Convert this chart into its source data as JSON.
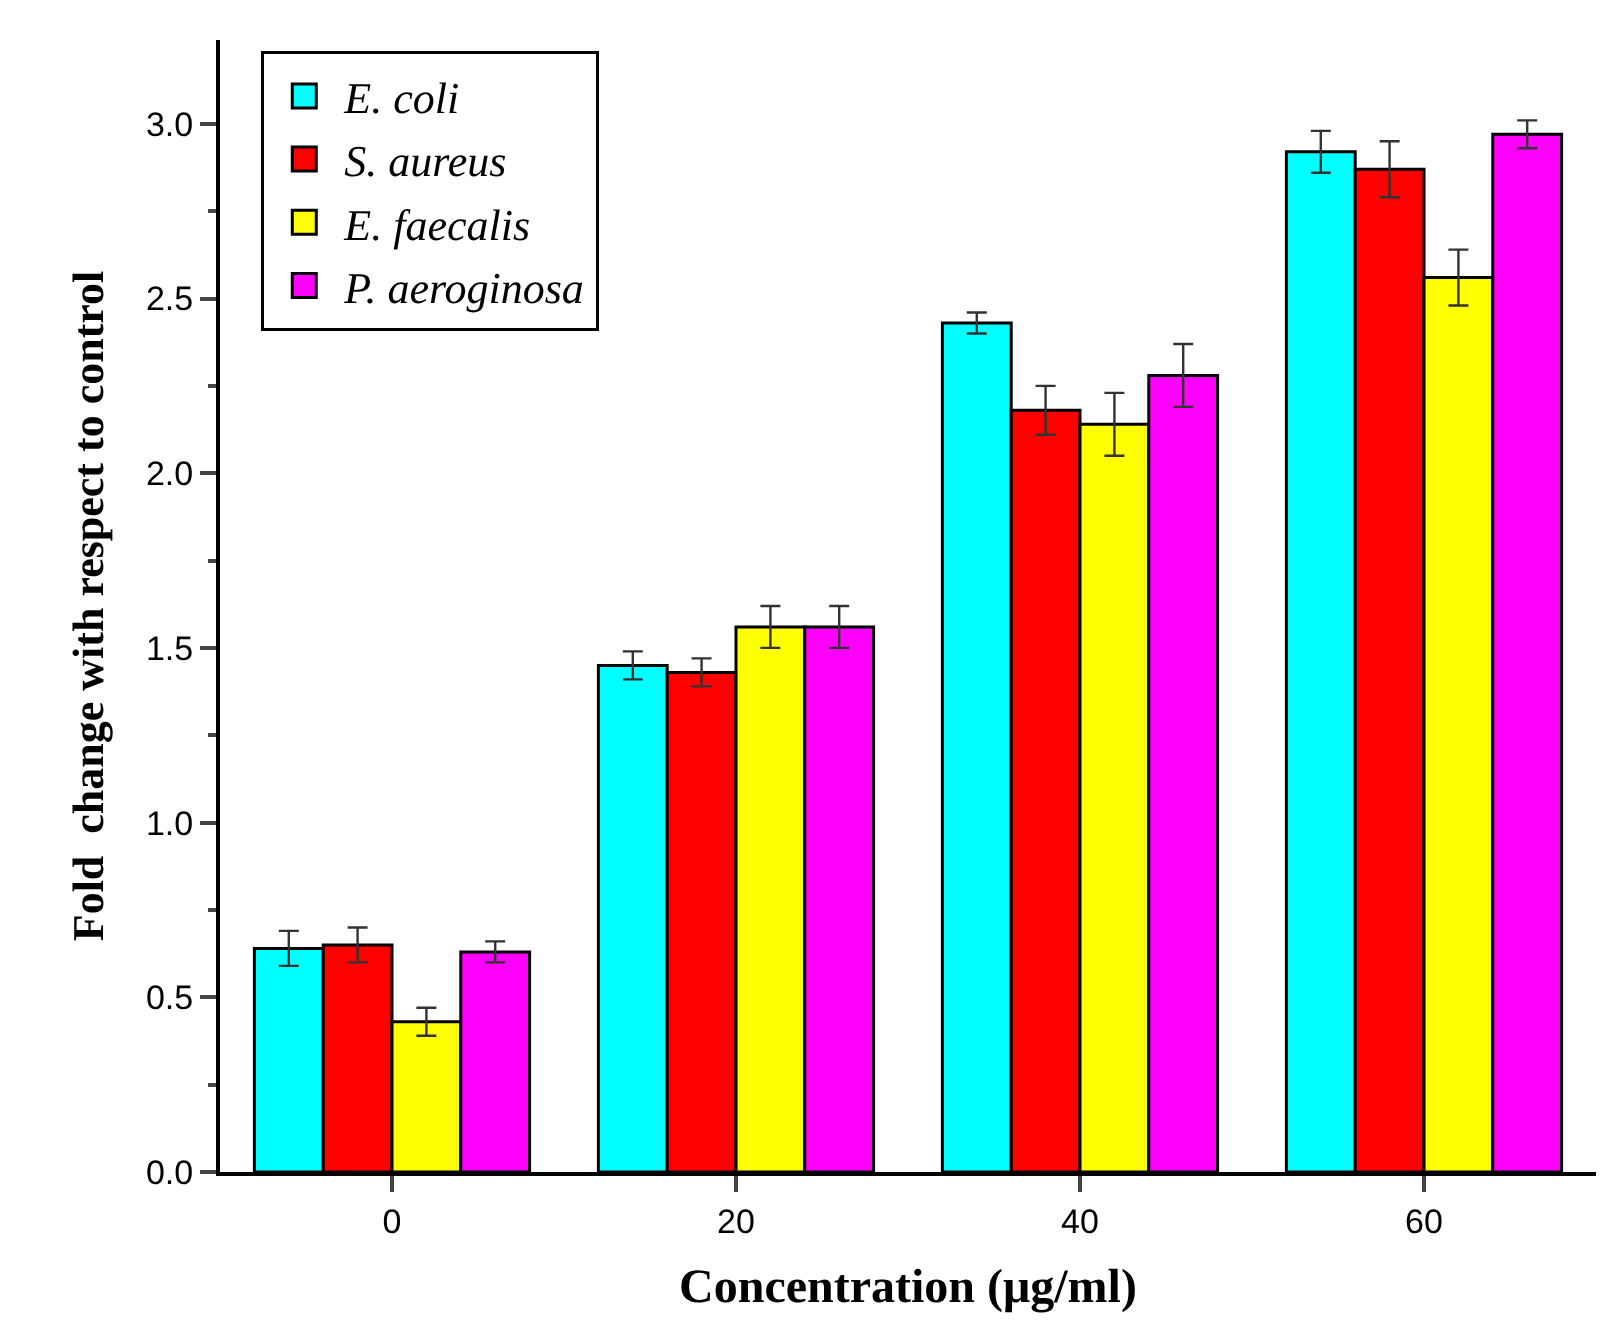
{
  "chart_data": {
    "type": "bar",
    "xlabel": "Concentration (μg/ml)",
    "ylabel": "Fold  change with respect to control",
    "categories": [
      "0",
      "20",
      "40",
      "60"
    ],
    "series": [
      {
        "name": "E. coli",
        "color": "#00ffff",
        "values": [
          0.64,
          1.45,
          2.43,
          2.92
        ],
        "errors": [
          0.05,
          0.04,
          0.03,
          0.06
        ]
      },
      {
        "name": "S. aureus",
        "color": "#ff0000",
        "values": [
          0.65,
          1.43,
          2.18,
          2.87
        ],
        "errors": [
          0.05,
          0.04,
          0.07,
          0.08
        ]
      },
      {
        "name": "E. faecalis",
        "color": "#ffff00",
        "values": [
          0.43,
          1.56,
          2.14,
          2.56
        ],
        "errors": [
          0.04,
          0.06,
          0.09,
          0.08
        ]
      },
      {
        "name": "P. aeroginosa",
        "color": "#ff00ff",
        "values": [
          0.63,
          1.56,
          2.28,
          2.97
        ],
        "errors": [
          0.03,
          0.06,
          0.09,
          0.04
        ]
      }
    ],
    "ylim": [
      0,
      3.24
    ],
    "yticks": [
      {
        "value": 0.0,
        "label": "0.0"
      },
      0.5,
      {
        "value": 1.0,
        "label": "1.0"
      },
      1.5,
      {
        "value": 2.0,
        "label": "2.0"
      },
      2.5,
      {
        "value": 3.0,
        "label": "3.0"
      }
    ],
    "legend": "top left"
  }
}
